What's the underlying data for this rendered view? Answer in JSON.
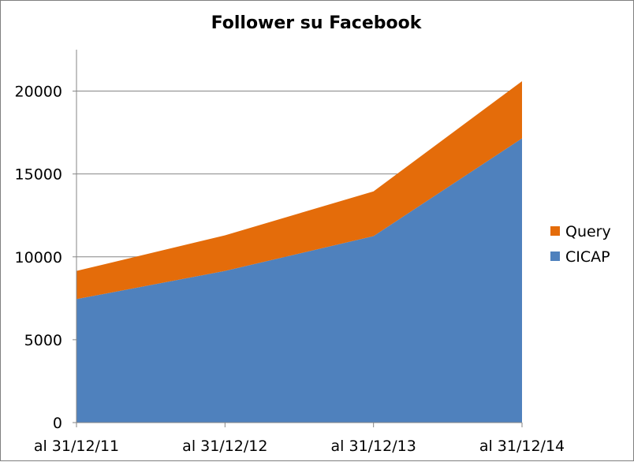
{
  "chart_data": {
    "type": "area",
    "stacked": true,
    "title": "Follower su Facebook",
    "xlabel": "",
    "ylabel": "",
    "categories": [
      "al 31/12/11",
      "al 31/12/12",
      "al 31/12/13",
      "al 31/12/14"
    ],
    "series": [
      {
        "name": "CICAP",
        "values": [
          7450,
          9150,
          11250,
          17150
        ],
        "color": "#4f81bd"
      },
      {
        "name": "Query",
        "values": [
          1700,
          2150,
          2700,
          3450
        ],
        "color": "#e46c0a"
      }
    ],
    "ylim": [
      0,
      22500
    ],
    "yticks": [
      0,
      5000,
      10000,
      15000,
      20000
    ],
    "grid": true,
    "legend_position": "right"
  }
}
